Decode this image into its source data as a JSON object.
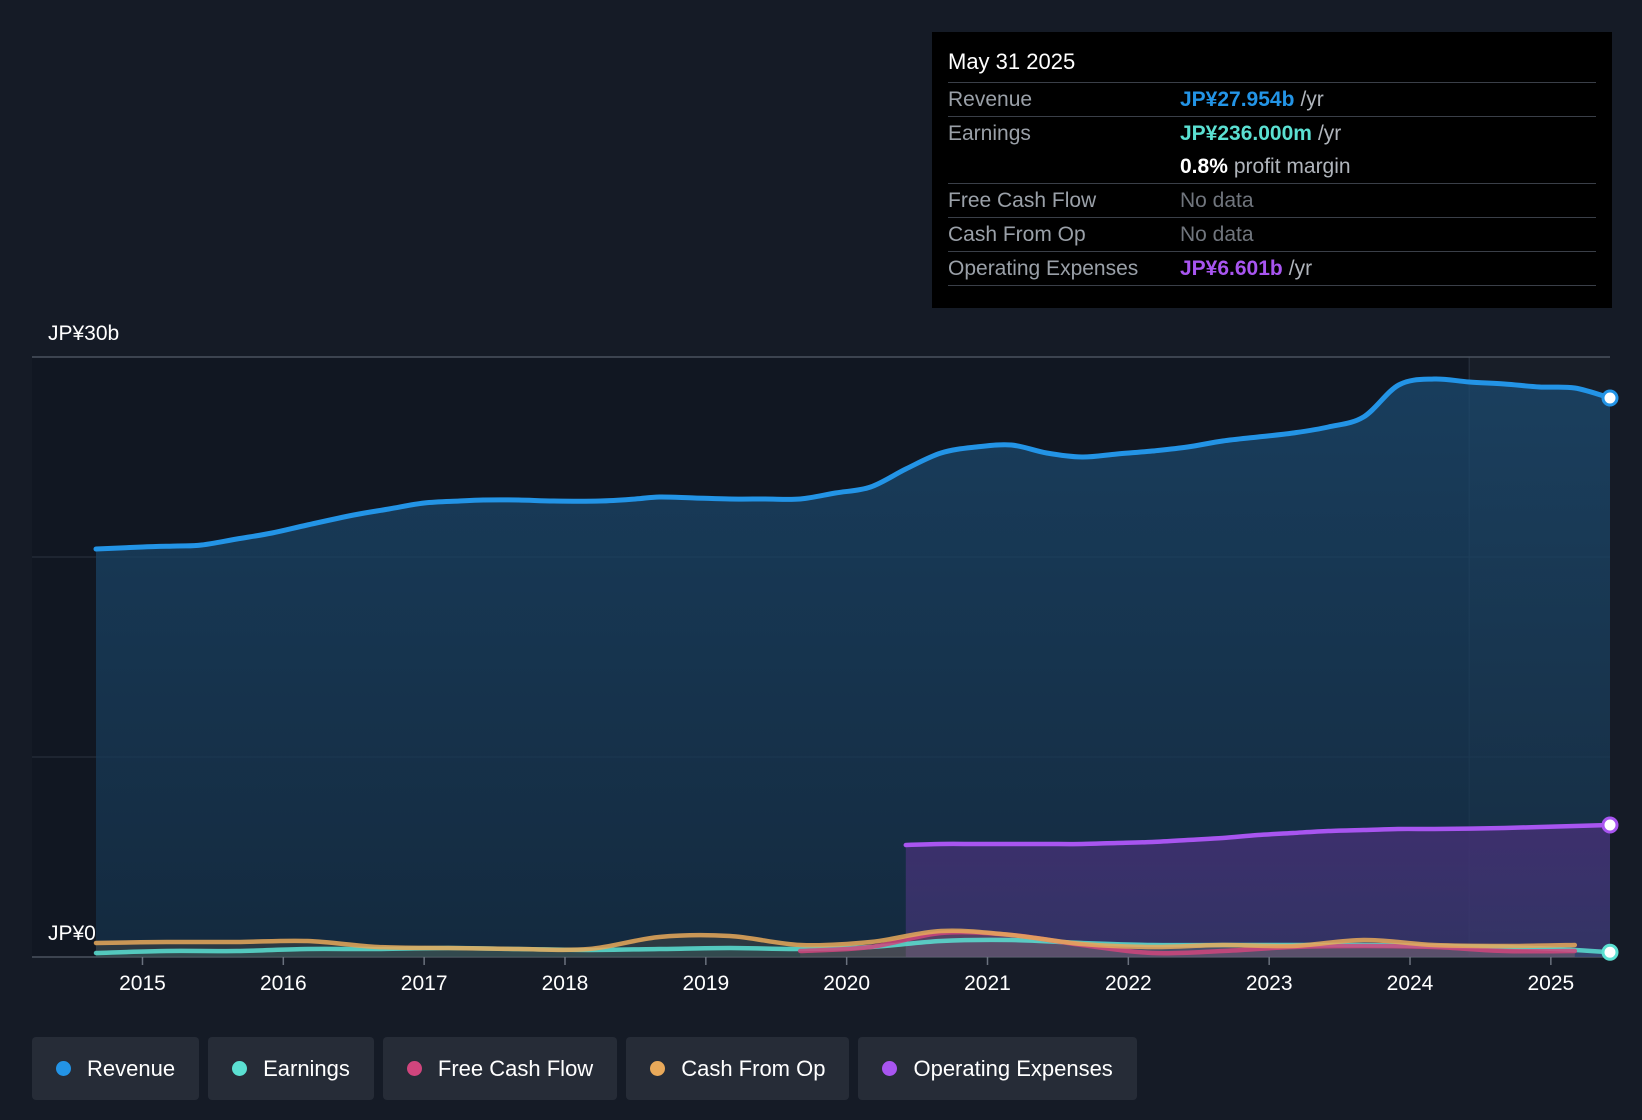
{
  "chart_data": {
    "type": "area",
    "y_axis_top_label": "JP¥30b",
    "y_axis_bottom_label": "JP¥0",
    "ylim": [
      0,
      30
    ],
    "xlim": [
      2014.67,
      2025.42
    ],
    "x_tick_labels": [
      "2015",
      "2016",
      "2017",
      "2018",
      "2019",
      "2020",
      "2021",
      "2022",
      "2023",
      "2024",
      "2025"
    ],
    "x_tick_values": [
      2015,
      2016,
      2017,
      2018,
      2019,
      2020,
      2021,
      2022,
      2023,
      2024,
      2025
    ],
    "forecast_start": 2024.42,
    "series": [
      {
        "name": "Revenue",
        "color": "#2394e6",
        "x": [
          2014.67,
          2015.0,
          2015.25,
          2015.42,
          2015.67,
          2015.92,
          2016.17,
          2016.5,
          2016.75,
          2017.0,
          2017.25,
          2017.42,
          2017.67,
          2017.92,
          2018.25,
          2018.5,
          2018.67,
          2018.92,
          2019.17,
          2019.42,
          2019.67,
          2019.92,
          2020.17,
          2020.42,
          2020.67,
          2020.92,
          2021.17,
          2021.42,
          2021.67,
          2021.92,
          2022.17,
          2022.42,
          2022.67,
          2022.92,
          2023.17,
          2023.42,
          2023.67,
          2023.92,
          2024.17,
          2024.42,
          2024.67,
          2024.92,
          2025.17,
          2025.42
        ],
        "values": [
          20.4,
          20.5,
          20.55,
          20.6,
          20.9,
          21.2,
          21.6,
          22.1,
          22.4,
          22.7,
          22.8,
          22.85,
          22.85,
          22.8,
          22.8,
          22.9,
          23.0,
          22.95,
          22.9,
          22.9,
          22.9,
          23.2,
          23.5,
          24.4,
          25.2,
          25.5,
          25.6,
          25.2,
          25.0,
          25.15,
          25.3,
          25.5,
          25.8,
          26.0,
          26.2,
          26.5,
          27.0,
          28.6,
          28.9,
          28.75,
          28.65,
          28.5,
          28.45,
          27.95
        ]
      },
      {
        "name": "Earnings",
        "color": "#5be0d2",
        "x": [
          2014.67,
          2015.17,
          2015.67,
          2016.17,
          2016.67,
          2017.17,
          2017.67,
          2018.17,
          2018.67,
          2019.17,
          2019.67,
          2020.17,
          2020.67,
          2021.17,
          2021.67,
          2022.17,
          2022.67,
          2023.17,
          2023.67,
          2024.17,
          2024.67,
          2025.17,
          2025.42
        ],
        "values": [
          0.2,
          0.3,
          0.3,
          0.4,
          0.4,
          0.45,
          0.4,
          0.35,
          0.4,
          0.45,
          0.4,
          0.5,
          0.8,
          0.85,
          0.7,
          0.6,
          0.6,
          0.6,
          0.6,
          0.55,
          0.5,
          0.35,
          0.236
        ]
      },
      {
        "name": "Free Cash Flow",
        "color": "#d0457d",
        "x": [
          2019.67,
          2020.17,
          2020.67,
          2021.17,
          2021.67,
          2022.17,
          2022.67,
          2023.17,
          2023.67,
          2024.17,
          2024.67,
          2025.17
        ],
        "values": [
          0.3,
          0.5,
          1.2,
          1.1,
          0.6,
          0.2,
          0.3,
          0.5,
          0.55,
          0.5,
          0.3,
          0.3
        ]
      },
      {
        "name": "Cash From Op",
        "color": "#e8a95a",
        "x": [
          2014.67,
          2015.17,
          2015.67,
          2016.17,
          2016.67,
          2017.17,
          2017.67,
          2018.17,
          2018.67,
          2019.17,
          2019.67,
          2020.17,
          2020.67,
          2021.17,
          2021.67,
          2022.17,
          2022.67,
          2023.17,
          2023.67,
          2024.17,
          2024.67,
          2025.17
        ],
        "values": [
          0.7,
          0.75,
          0.75,
          0.8,
          0.5,
          0.45,
          0.4,
          0.4,
          1.0,
          1.05,
          0.6,
          0.75,
          1.3,
          1.1,
          0.65,
          0.5,
          0.6,
          0.55,
          0.85,
          0.6,
          0.55,
          0.6
        ]
      },
      {
        "name": "Operating Expenses",
        "color": "#a855f0",
        "x": [
          2020.42,
          2020.67,
          2020.92,
          2021.17,
          2021.42,
          2021.67,
          2021.92,
          2022.17,
          2022.42,
          2022.67,
          2022.92,
          2023.17,
          2023.42,
          2023.67,
          2023.92,
          2024.17,
          2024.42,
          2024.67,
          2024.92,
          2025.17,
          2025.42
        ],
        "values": [
          5.6,
          5.65,
          5.65,
          5.65,
          5.65,
          5.65,
          5.7,
          5.75,
          5.85,
          5.95,
          6.1,
          6.2,
          6.3,
          6.35,
          6.4,
          6.4,
          6.42,
          6.45,
          6.5,
          6.55,
          6.6
        ]
      }
    ]
  },
  "tooltip": {
    "date": "May 31 2025",
    "revenue_label": "Revenue",
    "revenue_value": "JP¥27.954b",
    "revenue_unit": "/yr",
    "earnings_label": "Earnings",
    "earnings_value": "JP¥236.000m",
    "earnings_unit": "/yr",
    "margin_value": "0.8%",
    "margin_text": "profit margin",
    "fcf_label": "Free Cash Flow",
    "fcf_value": "No data",
    "cfo_label": "Cash From Op",
    "cfo_value": "No data",
    "opex_label": "Operating Expenses",
    "opex_value": "JP¥6.601b",
    "opex_unit": "/yr"
  },
  "legend": {
    "revenue": "Revenue",
    "earnings": "Earnings",
    "fcf": "Free Cash Flow",
    "cfo": "Cash From Op",
    "opex": "Operating Expenses"
  },
  "colors": {
    "revenue": "#2394e6",
    "earnings": "#5be0d2",
    "fcf": "#d0457d",
    "cfo": "#e8a95a",
    "opex": "#a855f0",
    "background": "#151b26",
    "tooltip_bg": "#000000"
  }
}
